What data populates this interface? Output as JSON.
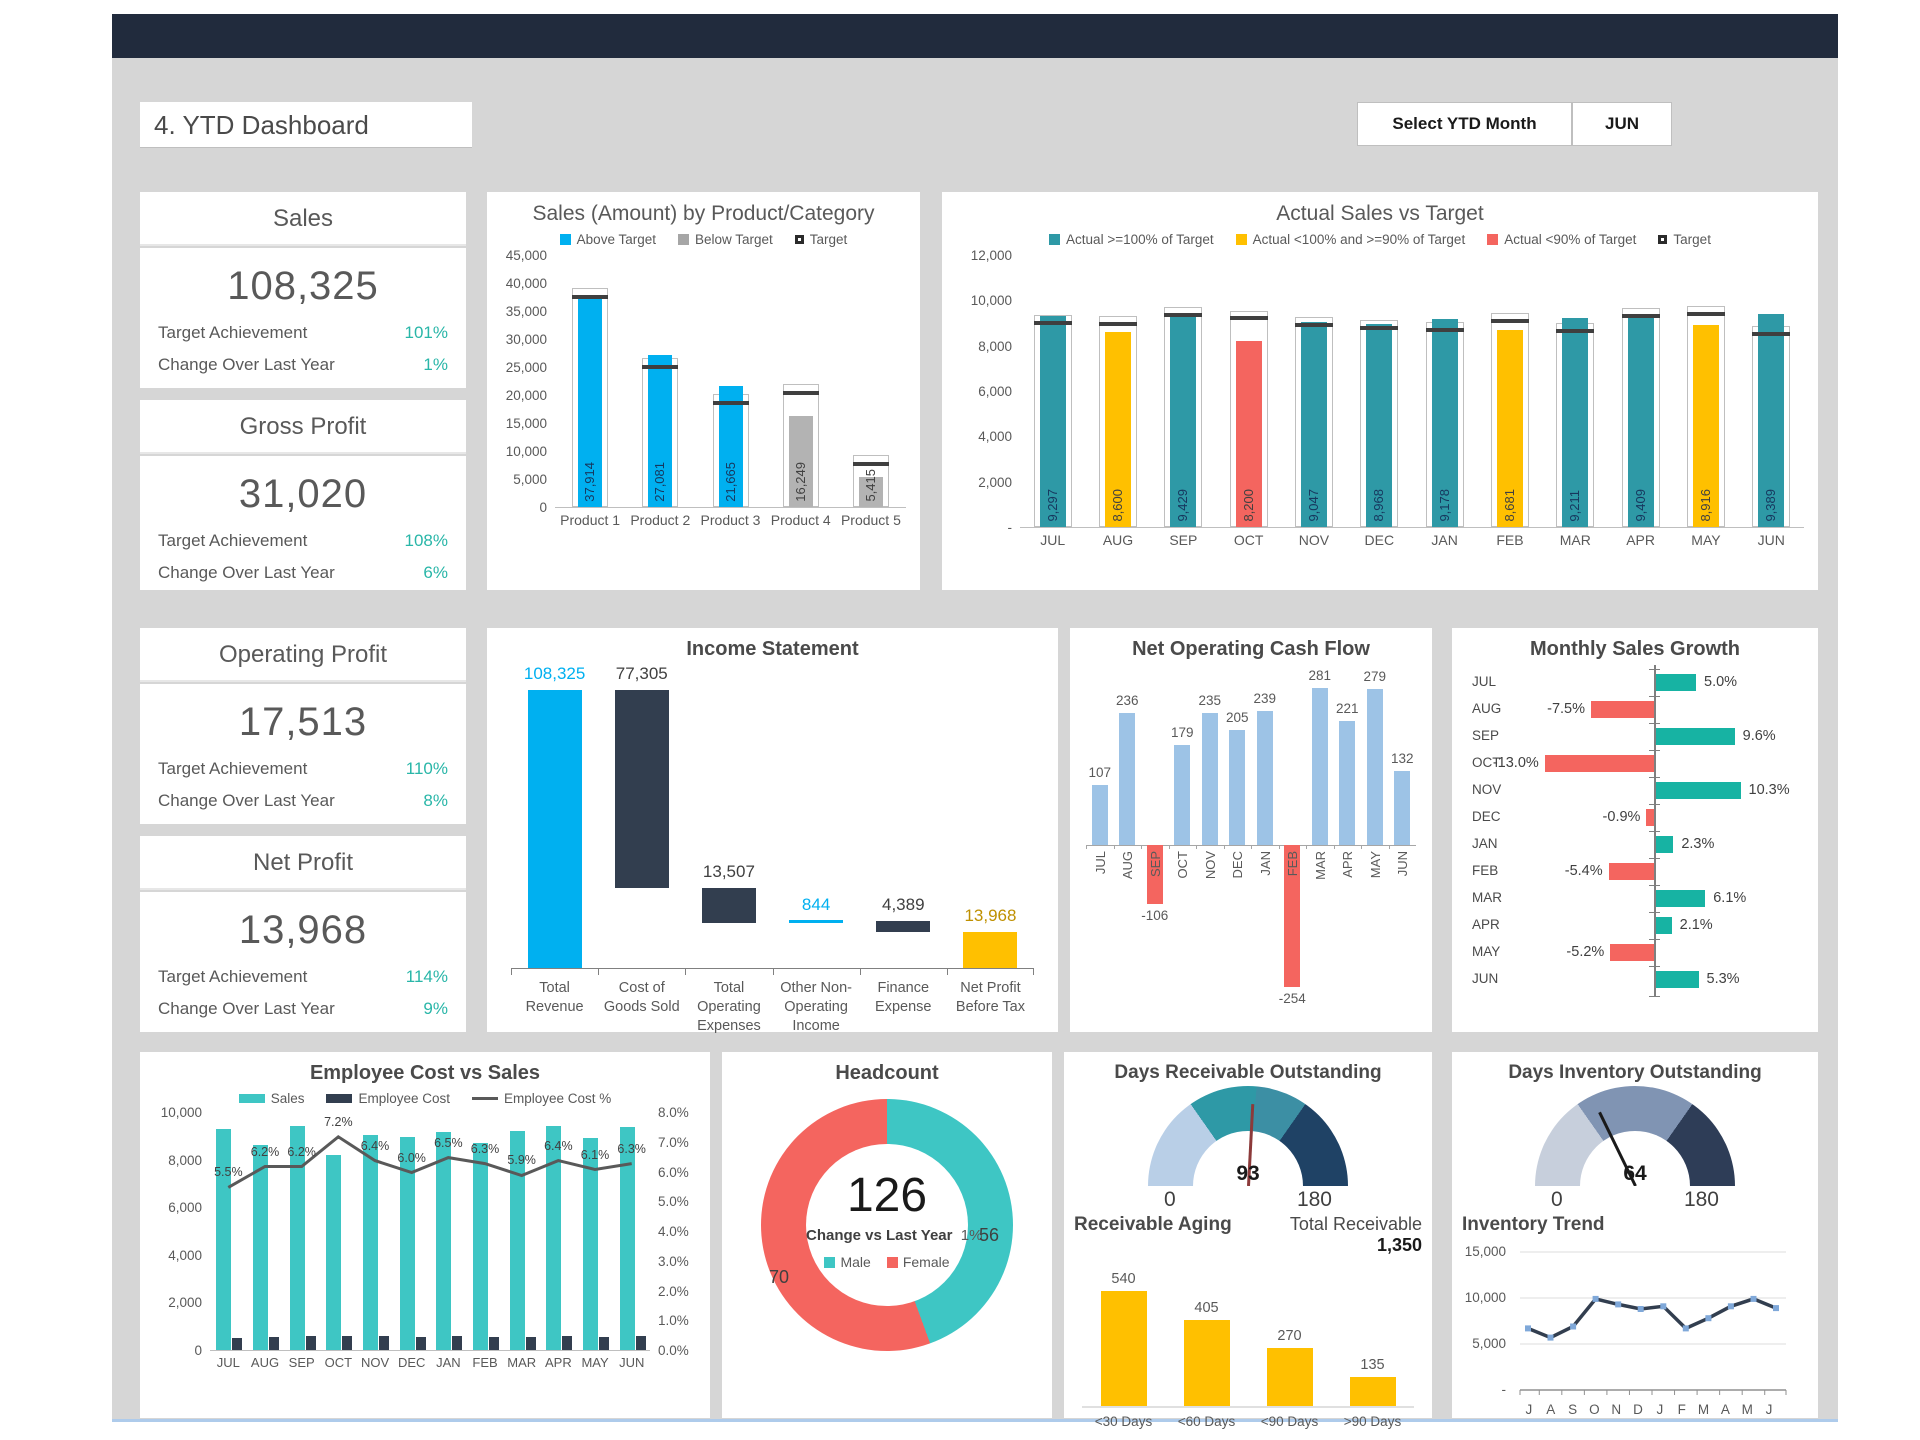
{
  "header": {
    "title": "4. YTD Dashboard",
    "select_button": "Select YTD Month",
    "selected_month": "JUN"
  },
  "colors": {
    "accent_teal": "#29B6A8",
    "excel_blue": "#00B0F0",
    "dark_navy_bar": "#323E4F",
    "gold": "#FFC000",
    "red": "#F4655F",
    "teal_bar": "#2E99A6",
    "light_blue_bar": "#9DC3E6",
    "growth_teal": "#17B3A3",
    "emp_sales_teal": "#3EC6C4",
    "gray_bar": "#B3B3B3",
    "header_band": "#212B3D",
    "canvas_gray": "#D6D6D6"
  },
  "kpis": [
    {
      "title": "Sales",
      "value": "108,325",
      "rows": [
        {
          "label": "Target Achievement",
          "value": "101%"
        },
        {
          "label": "Change Over Last Year",
          "value": "1%"
        }
      ]
    },
    {
      "title": "Gross Profit",
      "value": "31,020",
      "rows": [
        {
          "label": "Target Achievement",
          "value": "108%"
        },
        {
          "label": "Change Over Last Year",
          "value": "6%"
        }
      ]
    },
    {
      "title": "Operating Profit",
      "value": "17,513",
      "rows": [
        {
          "label": "Target Achievement",
          "value": "110%"
        },
        {
          "label": "Change Over Last Year",
          "value": "8%"
        }
      ]
    },
    {
      "title": "Net Profit",
      "value": "13,968",
      "rows": [
        {
          "label": "Target Achievement",
          "value": "114%"
        },
        {
          "label": "Change Over Last Year",
          "value": "9%"
        }
      ]
    }
  ],
  "chart_data": [
    {
      "id": "product_sales",
      "type": "bar",
      "title": "Sales (Amount) by Product/Category",
      "legend": [
        "Above Target",
        "Below Target",
        "Target"
      ],
      "categories": [
        "Product 1",
        "Product 2",
        "Product 3",
        "Product 4",
        "Product 5"
      ],
      "values": [
        37914,
        27081,
        21665,
        16249,
        5415
      ],
      "value_labels": [
        "37,914",
        "27,081",
        "21,665",
        "16,249",
        "5,415"
      ],
      "targets": [
        37500,
        25000,
        18500,
        20300,
        7600
      ],
      "status": [
        "above",
        "above",
        "above",
        "below",
        "below"
      ],
      "ylim": [
        0,
        45000
      ],
      "ytick_step": 5000,
      "grid": false,
      "legend_position": "top"
    },
    {
      "id": "actual_vs_target",
      "type": "bar",
      "title": "Actual Sales vs Target",
      "legend": [
        "Actual >=100% of Target",
        "Actual <100% and >=90% of Target",
        "Actual <90% of Target",
        "Target"
      ],
      "categories": [
        "JUL",
        "AUG",
        "SEP",
        "OCT",
        "NOV",
        "DEC",
        "JAN",
        "FEB",
        "MAR",
        "APR",
        "MAY",
        "JUN"
      ],
      "values": [
        9297,
        8600,
        9429,
        8200,
        9047,
        8968,
        9178,
        8681,
        9211,
        9409,
        8916,
        9389
      ],
      "value_labels": [
        "9,297",
        "8,600",
        "9,429",
        "8,200",
        "9,047",
        "8,968",
        "9,178",
        "8,681",
        "9,211",
        "9,409",
        "8,916",
        "9,389"
      ],
      "targets": [
        9000,
        8950,
        9350,
        9200,
        8900,
        8800,
        8700,
        9100,
        8650,
        9300,
        9400,
        8500
      ],
      "status": [
        "ok",
        "warn",
        "ok",
        "low",
        "ok",
        "ok",
        "ok",
        "warn",
        "ok",
        "ok",
        "warn",
        "ok"
      ],
      "ylim": [
        0,
        12000
      ],
      "yticks": [
        "12,000",
        "10,000",
        "8,000",
        "6,000",
        "4,000",
        "2,000",
        "-"
      ],
      "grid": false,
      "legend_position": "top"
    },
    {
      "id": "income_statement",
      "type": "waterfall",
      "title": "Income Statement",
      "categories": [
        "Total Revenue",
        "Cost of Goods Sold",
        "Total Operating Expenses",
        "Other Non-Operating Income",
        "Finance Expense",
        "Net Profit Before Tax"
      ],
      "labels": [
        "108,325",
        "77,305",
        "13,507",
        "844",
        "4,389",
        "13,968"
      ],
      "start": [
        0,
        31020,
        17513,
        17513,
        13968,
        0
      ],
      "end": [
        108325,
        108325,
        31020,
        18357,
        18357,
        13968
      ],
      "bar_colors": [
        "#00B0F0",
        "#323E4F",
        "#323E4F",
        "#00B0F0",
        "#323E4F",
        "#FFC000"
      ],
      "label_colors": [
        "#00B0F0",
        "#404040",
        "#404040",
        "#00B0F0",
        "#404040",
        "#BF9000"
      ]
    },
    {
      "id": "cash_flow",
      "type": "bar",
      "title": "Net Operating Cash Flow",
      "categories": [
        "JUL",
        "AUG",
        "SEP",
        "OCT",
        "NOV",
        "DEC",
        "JAN",
        "FEB",
        "MAR",
        "APR",
        "MAY",
        "JUN"
      ],
      "values": [
        107,
        236,
        -106,
        179,
        235,
        205,
        239,
        -254,
        281,
        221,
        279,
        132
      ],
      "value_labels": [
        "107",
        "236",
        "-106",
        "179",
        "235",
        "205",
        "239",
        "-254",
        "281",
        "221",
        "279",
        "132"
      ],
      "positive_color": "#9DC3E6",
      "negative_color": "#F4655F",
      "grid": false
    },
    {
      "id": "monthly_growth",
      "type": "bar-horizontal",
      "title": "Monthly Sales Growth",
      "categories": [
        "JUL",
        "AUG",
        "SEP",
        "OCT",
        "NOV",
        "DEC",
        "JAN",
        "FEB",
        "MAR",
        "APR",
        "MAY",
        "JUN"
      ],
      "values": [
        5.0,
        -7.5,
        9.6,
        -13.0,
        10.3,
        -0.9,
        2.3,
        -5.4,
        6.1,
        2.1,
        -5.2,
        5.3
      ],
      "labels": [
        "5.0%",
        "-7.5%",
        "9.6%",
        "-13.0%",
        "10.3%",
        "-0.9%",
        "2.3%",
        "-5.4%",
        "6.1%",
        "2.1%",
        "-5.2%",
        "5.3%"
      ],
      "positive_color": "#17B3A3",
      "negative_color": "#F4655F"
    },
    {
      "id": "employee_cost_vs_sales",
      "type": "combo",
      "title": "Employee Cost vs Sales",
      "legend": [
        "Sales",
        "Employee Cost",
        "Employee Cost %"
      ],
      "categories": [
        "JUL",
        "AUG",
        "SEP",
        "OCT",
        "NOV",
        "DEC",
        "JAN",
        "FEB",
        "MAR",
        "APR",
        "MAY",
        "JUN"
      ],
      "series": [
        {
          "name": "Sales",
          "values": [
            9297,
            8600,
            9429,
            8200,
            9047,
            8968,
            9178,
            8681,
            9211,
            9409,
            8916,
            9389
          ]
        },
        {
          "name": "Employee Cost",
          "values": [
            510,
            535,
            585,
            590,
            580,
            540,
            595,
            545,
            545,
            600,
            545,
            590
          ]
        },
        {
          "name": "Employee Cost %",
          "values": [
            5.5,
            6.2,
            6.2,
            7.2,
            6.4,
            6.0,
            6.5,
            6.3,
            5.9,
            6.4,
            6.1,
            6.3
          ]
        }
      ],
      "pct_labels": [
        "5.5%",
        "6.2%",
        "6.2%",
        "7.2%",
        "6.4%",
        "6.0%",
        "6.5%",
        "6.3%",
        "5.9%",
        "6.4%",
        "6.1%",
        "6.3%"
      ],
      "ylim_left": [
        0,
        10000
      ],
      "yticks_left": [
        "10,000",
        "8,000",
        "6,000",
        "4,000",
        "2,000",
        "0"
      ],
      "ylim_right": [
        0,
        8
      ],
      "yticks_right": [
        "8.0%",
        "7.0%",
        "6.0%",
        "5.0%",
        "4.0%",
        "3.0%",
        "2.0%",
        "1.0%",
        "0.0%"
      ]
    },
    {
      "id": "headcount",
      "type": "pie",
      "title": "Headcount",
      "total": "126",
      "center_label": "Change vs Last Year",
      "center_value": "1%",
      "slices": [
        {
          "name": "Male",
          "value": 56,
          "color": "#3EC6C4"
        },
        {
          "name": "Female",
          "value": 70,
          "color": "#F4655F"
        }
      ]
    },
    {
      "id": "days_receivable",
      "type": "gauge",
      "title": "Days Receivable Outstanding",
      "value": 93,
      "min": 0,
      "max": 180,
      "min_label": "0",
      "max_label": "180",
      "segments": [
        {
          "to": 55,
          "color": "#B9CFE7"
        },
        {
          "to": 95,
          "color": "#2E99A6"
        },
        {
          "to": 125,
          "color": "#3C8FA4"
        },
        {
          "to": 180,
          "color": "#1F4265"
        }
      ],
      "needle_color": "#8C3A3A"
    },
    {
      "id": "receivable_aging",
      "type": "bar",
      "title": "Receivable Aging",
      "total_label": "Total Receivable",
      "total_value": "1,350",
      "categories": [
        "<30 Days",
        "<60 Days",
        "<90 Days",
        ">90 Days"
      ],
      "values": [
        540,
        405,
        270,
        135
      ],
      "value_labels": [
        "540",
        "405",
        "270",
        "135"
      ],
      "bar_color": "#FFC000"
    },
    {
      "id": "days_inventory",
      "type": "gauge",
      "title": "Days Inventory Outstanding",
      "value": 64,
      "min": 0,
      "max": 180,
      "min_label": "0",
      "max_label": "180",
      "segments": [
        {
          "to": 55,
          "color": "#C7CFDC"
        },
        {
          "to": 125,
          "color": "#8094B3"
        },
        {
          "to": 180,
          "color": "#2E3D57"
        }
      ],
      "needle_color": "#1a1a1a"
    },
    {
      "id": "inventory_trend",
      "type": "line",
      "title": "Inventory Trend",
      "categories": [
        "J",
        "A",
        "S",
        "O",
        "N",
        "D",
        "J",
        "F",
        "M",
        "A",
        "M",
        "J"
      ],
      "values": [
        6700,
        5700,
        6900,
        9900,
        9300,
        8800,
        9100,
        6700,
        7800,
        9100,
        9900,
        8900
      ],
      "ylim": [
        0,
        15000
      ],
      "yticks": [
        "15,000",
        "10,000",
        "5,000",
        "-"
      ],
      "line_color": "#323E4F",
      "marker_color": "#7FA8D9",
      "grid": true
    }
  ]
}
